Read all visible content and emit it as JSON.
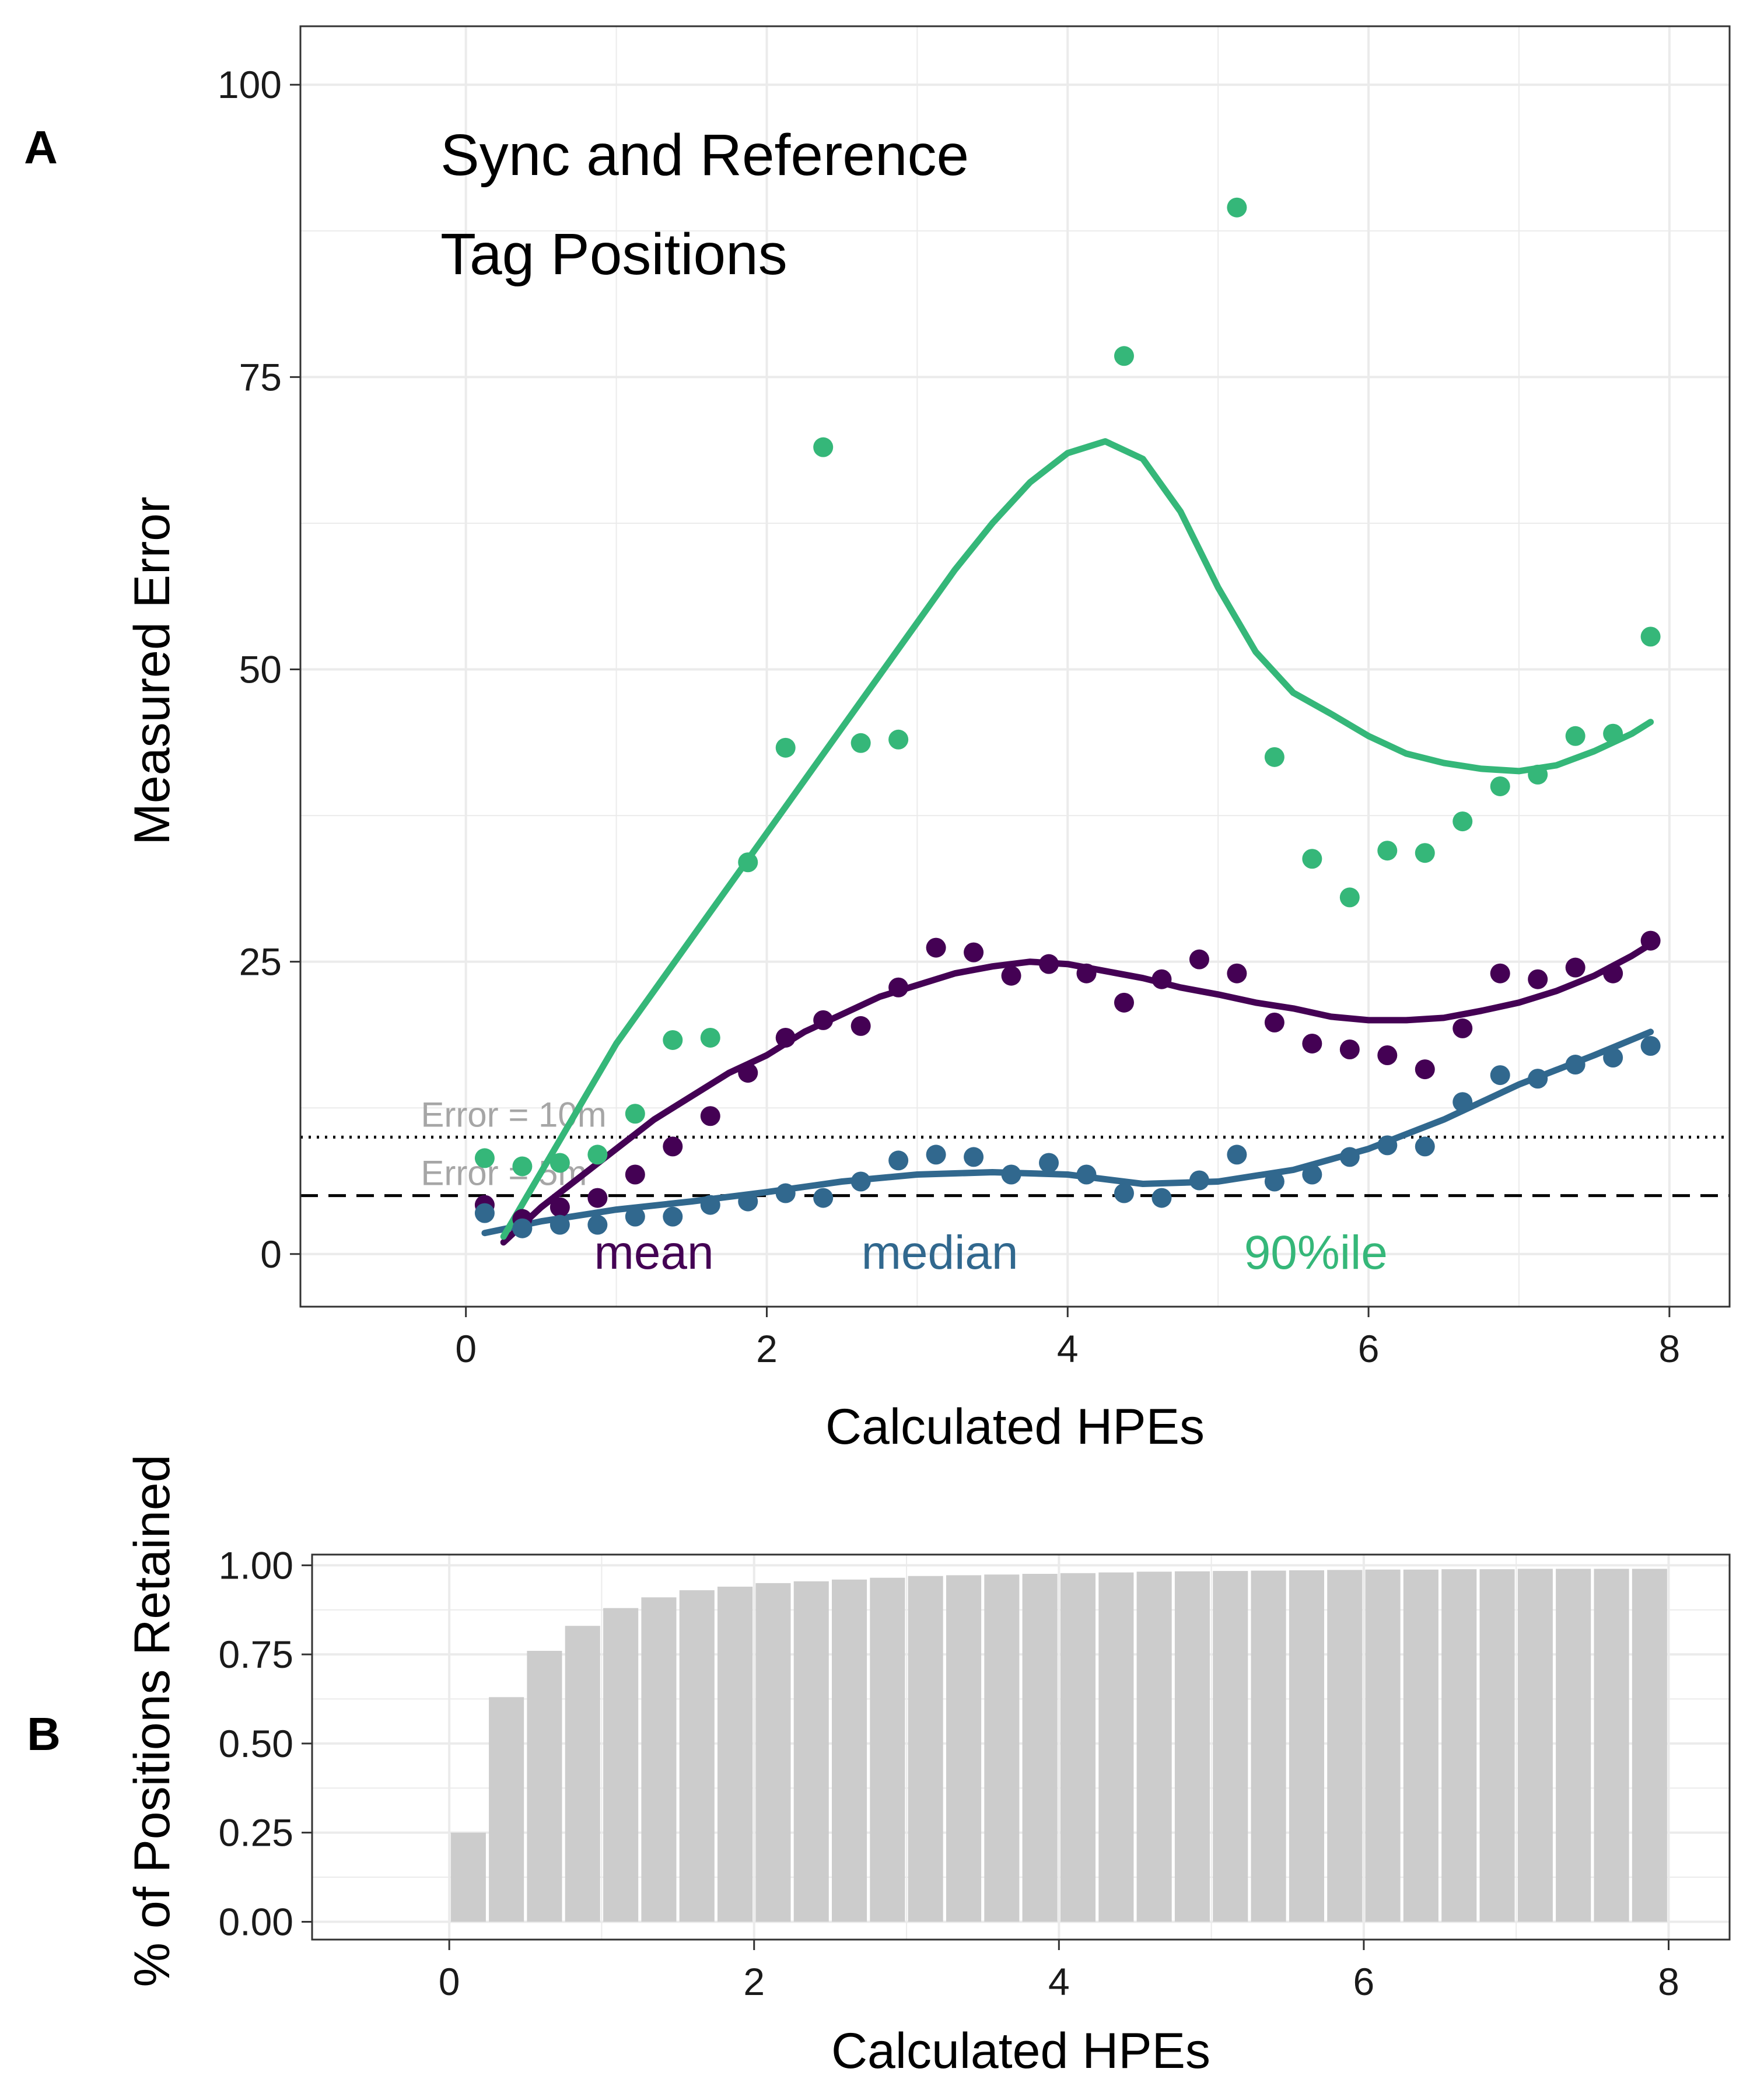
{
  "colors": {
    "mean": "#440154",
    "median": "#31688e",
    "p90": "#35b779",
    "bar": "#cccccc",
    "grid": "#ebebeb",
    "ref_label": "#a6a6a6"
  },
  "chart_data": [
    {
      "panel_label": "A",
      "type": "scatter",
      "title": "Sync and Reference\nTag Positions",
      "title_lines": [
        "Sync and Reference",
        "Tag Positions"
      ],
      "xlabel": "Calculated HPEs",
      "ylabel": "Measured Error",
      "xlim": [
        -1.1,
        8.4
      ],
      "ylim": [
        -4.5,
        105
      ],
      "xticks": [
        0,
        2,
        4,
        6,
        8
      ],
      "yticks": [
        0,
        25,
        50,
        75,
        100
      ],
      "grid": true,
      "legend_placement": "inline labels at bottom",
      "reference_lines": [
        {
          "y": 10,
          "style": "dotted",
          "label": "Error = 10m"
        },
        {
          "y": 5,
          "style": "dashed",
          "label": "Error = 5m"
        }
      ],
      "series": [
        {
          "name": "mean",
          "color_key": "mean",
          "points": [
            [
              0.125,
              4.2
            ],
            [
              0.375,
              3.0
            ],
            [
              0.625,
              4.0
            ],
            [
              0.875,
              4.8
            ],
            [
              1.125,
              6.8
            ],
            [
              1.375,
              9.2
            ],
            [
              1.625,
              11.8
            ],
            [
              1.875,
              15.5
            ],
            [
              2.125,
              18.5
            ],
            [
              2.375,
              20.0
            ],
            [
              2.625,
              19.5
            ],
            [
              2.875,
              22.8
            ],
            [
              3.125,
              26.2
            ],
            [
              3.375,
              25.8
            ],
            [
              3.625,
              23.8
            ],
            [
              3.875,
              24.8
            ],
            [
              4.125,
              24.0
            ],
            [
              4.375,
              21.5
            ],
            [
              4.625,
              23.5
            ],
            [
              4.875,
              25.2
            ],
            [
              5.125,
              24.0
            ],
            [
              5.375,
              19.8
            ],
            [
              5.625,
              18.0
            ],
            [
              5.875,
              17.5
            ],
            [
              6.125,
              17.0
            ],
            [
              6.375,
              15.8
            ],
            [
              6.625,
              19.3
            ],
            [
              6.875,
              24.0
            ],
            [
              7.125,
              23.5
            ],
            [
              7.375,
              24.5
            ],
            [
              7.625,
              24.0
            ],
            [
              7.875,
              26.8
            ]
          ],
          "smooth": [
            [
              0.25,
              1.0
            ],
            [
              0.5,
              4.0
            ],
            [
              0.75,
              6.5
            ],
            [
              1.0,
              9.0
            ],
            [
              1.25,
              11.5
            ],
            [
              1.5,
              13.5
            ],
            [
              1.75,
              15.5
            ],
            [
              2.0,
              17.0
            ],
            [
              2.25,
              19.0
            ],
            [
              2.5,
              20.5
            ],
            [
              2.75,
              22.0
            ],
            [
              3.0,
              23.0
            ],
            [
              3.25,
              24.0
            ],
            [
              3.5,
              24.6
            ],
            [
              3.75,
              25.0
            ],
            [
              4.0,
              24.8
            ],
            [
              4.25,
              24.2
            ],
            [
              4.5,
              23.6
            ],
            [
              4.75,
              22.8
            ],
            [
              5.0,
              22.2
            ],
            [
              5.25,
              21.5
            ],
            [
              5.5,
              21.0
            ],
            [
              5.75,
              20.3
            ],
            [
              6.0,
              20.0
            ],
            [
              6.25,
              20.0
            ],
            [
              6.5,
              20.2
            ],
            [
              6.75,
              20.8
            ],
            [
              7.0,
              21.5
            ],
            [
              7.25,
              22.5
            ],
            [
              7.5,
              23.8
            ],
            [
              7.75,
              25.5
            ],
            [
              7.875,
              26.5
            ]
          ]
        },
        {
          "name": "median",
          "color_key": "median",
          "points": [
            [
              0.125,
              3.5
            ],
            [
              0.375,
              2.2
            ],
            [
              0.625,
              2.5
            ],
            [
              0.875,
              2.5
            ],
            [
              1.125,
              3.2
            ],
            [
              1.375,
              3.2
            ],
            [
              1.625,
              4.2
            ],
            [
              1.875,
              4.5
            ],
            [
              2.125,
              5.2
            ],
            [
              2.375,
              4.8
            ],
            [
              2.625,
              6.2
            ],
            [
              2.875,
              8.0
            ],
            [
              3.125,
              8.5
            ],
            [
              3.375,
              8.3
            ],
            [
              3.625,
              6.8
            ],
            [
              3.875,
              7.8
            ],
            [
              4.125,
              6.8
            ],
            [
              4.375,
              5.2
            ],
            [
              4.625,
              4.8
            ],
            [
              4.875,
              6.3
            ],
            [
              5.125,
              8.5
            ],
            [
              5.375,
              6.2
            ],
            [
              5.625,
              6.8
            ],
            [
              5.875,
              8.3
            ],
            [
              6.125,
              9.3
            ],
            [
              6.375,
              9.2
            ],
            [
              6.625,
              13.0
            ],
            [
              6.875,
              15.3
            ],
            [
              7.125,
              15.0
            ],
            [
              7.375,
              16.2
            ],
            [
              7.625,
              16.8
            ],
            [
              7.875,
              17.8
            ]
          ],
          "smooth": [
            [
              0.125,
              1.8
            ],
            [
              0.5,
              2.8
            ],
            [
              1.0,
              3.8
            ],
            [
              1.5,
              4.5
            ],
            [
              2.0,
              5.3
            ],
            [
              2.5,
              6.2
            ],
            [
              3.0,
              6.8
            ],
            [
              3.5,
              7.0
            ],
            [
              4.0,
              6.8
            ],
            [
              4.5,
              6.0
            ],
            [
              5.0,
              6.2
            ],
            [
              5.5,
              7.2
            ],
            [
              6.0,
              9.0
            ],
            [
              6.5,
              11.5
            ],
            [
              7.0,
              14.5
            ],
            [
              7.5,
              17.0
            ],
            [
              7.875,
              19.0
            ]
          ]
        },
        {
          "name": "90%ile",
          "color_key": "p90",
          "points": [
            [
              0.125,
              8.2
            ],
            [
              0.375,
              7.5
            ],
            [
              0.625,
              7.8
            ],
            [
              0.875,
              8.5
            ],
            [
              1.125,
              12.0
            ],
            [
              1.375,
              18.3
            ],
            [
              1.625,
              18.5
            ],
            [
              1.875,
              33.5
            ],
            [
              2.125,
              43.3
            ],
            [
              2.375,
              69.0
            ],
            [
              2.625,
              43.7
            ],
            [
              2.875,
              44.0
            ],
            [
              4.375,
              76.8
            ],
            [
              5.125,
              89.5
            ],
            [
              5.375,
              42.5
            ],
            [
              5.625,
              33.8
            ],
            [
              5.875,
              30.5
            ],
            [
              6.125,
              34.5
            ],
            [
              6.375,
              34.3
            ],
            [
              6.625,
              37.0
            ],
            [
              6.875,
              40.0
            ],
            [
              7.125,
              41.0
            ],
            [
              7.375,
              44.3
            ],
            [
              7.625,
              44.5
            ],
            [
              7.875,
              52.8
            ]
          ],
          "smooth": [
            [
              0.25,
              1.5
            ],
            [
              0.5,
              7.0
            ],
            [
              0.75,
              12.5
            ],
            [
              1.0,
              18.0
            ],
            [
              1.25,
              22.5
            ],
            [
              1.5,
              27.0
            ],
            [
              1.75,
              31.5
            ],
            [
              2.0,
              36.0
            ],
            [
              2.25,
              40.5
            ],
            [
              2.5,
              45.0
            ],
            [
              2.75,
              49.5
            ],
            [
              3.0,
              54.0
            ],
            [
              3.25,
              58.5
            ],
            [
              3.5,
              62.5
            ],
            [
              3.75,
              66.0
            ],
            [
              4.0,
              68.5
            ],
            [
              4.25,
              69.5
            ],
            [
              4.5,
              68.0
            ],
            [
              4.75,
              63.5
            ],
            [
              5.0,
              57.0
            ],
            [
              5.25,
              51.5
            ],
            [
              5.5,
              48.0
            ],
            [
              5.75,
              46.2
            ],
            [
              6.0,
              44.3
            ],
            [
              6.25,
              42.8
            ],
            [
              6.5,
              42.0
            ],
            [
              6.75,
              41.5
            ],
            [
              7.0,
              41.3
            ],
            [
              7.25,
              41.8
            ],
            [
              7.5,
              43.0
            ],
            [
              7.75,
              44.5
            ],
            [
              7.875,
              45.5
            ]
          ]
        }
      ],
      "series_labels": [
        {
          "text": "mean",
          "color_key": "mean",
          "x": 1.25,
          "y": 0
        },
        {
          "text": "median",
          "color_key": "median",
          "x": 3.15,
          "y": 0
        },
        {
          "text": "90%ile",
          "color_key": "p90",
          "x": 5.65,
          "y": 0
        }
      ]
    },
    {
      "panel_label": "B",
      "type": "bar",
      "xlabel": "Calculated HPEs",
      "ylabel": "% of Positions Retained",
      "xlim": [
        -0.9,
        8.4
      ],
      "ylim": [
        -0.05,
        1.03
      ],
      "xticks": [
        0,
        2,
        4,
        6,
        8
      ],
      "yticks": [
        0.0,
        0.25,
        0.5,
        0.75,
        1.0
      ],
      "ytick_labels": [
        "0.00",
        "0.25",
        "0.50",
        "0.75",
        "1.00"
      ],
      "grid": true,
      "bar_width": 0.23,
      "x": [
        0.125,
        0.375,
        0.625,
        0.875,
        1.125,
        1.375,
        1.625,
        1.875,
        2.125,
        2.375,
        2.625,
        2.875,
        3.125,
        3.375,
        3.625,
        3.875,
        4.125,
        4.375,
        4.625,
        4.875,
        5.125,
        5.375,
        5.625,
        5.875,
        6.125,
        6.375,
        6.625,
        6.875,
        7.125,
        7.375,
        7.625,
        7.875
      ],
      "values": [
        0.25,
        0.63,
        0.76,
        0.83,
        0.88,
        0.91,
        0.93,
        0.94,
        0.95,
        0.955,
        0.96,
        0.965,
        0.97,
        0.972,
        0.974,
        0.976,
        0.978,
        0.98,
        0.982,
        0.983,
        0.984,
        0.985,
        0.986,
        0.987,
        0.988,
        0.988,
        0.989,
        0.989,
        0.99,
        0.99,
        0.99,
        0.99
      ]
    }
  ]
}
